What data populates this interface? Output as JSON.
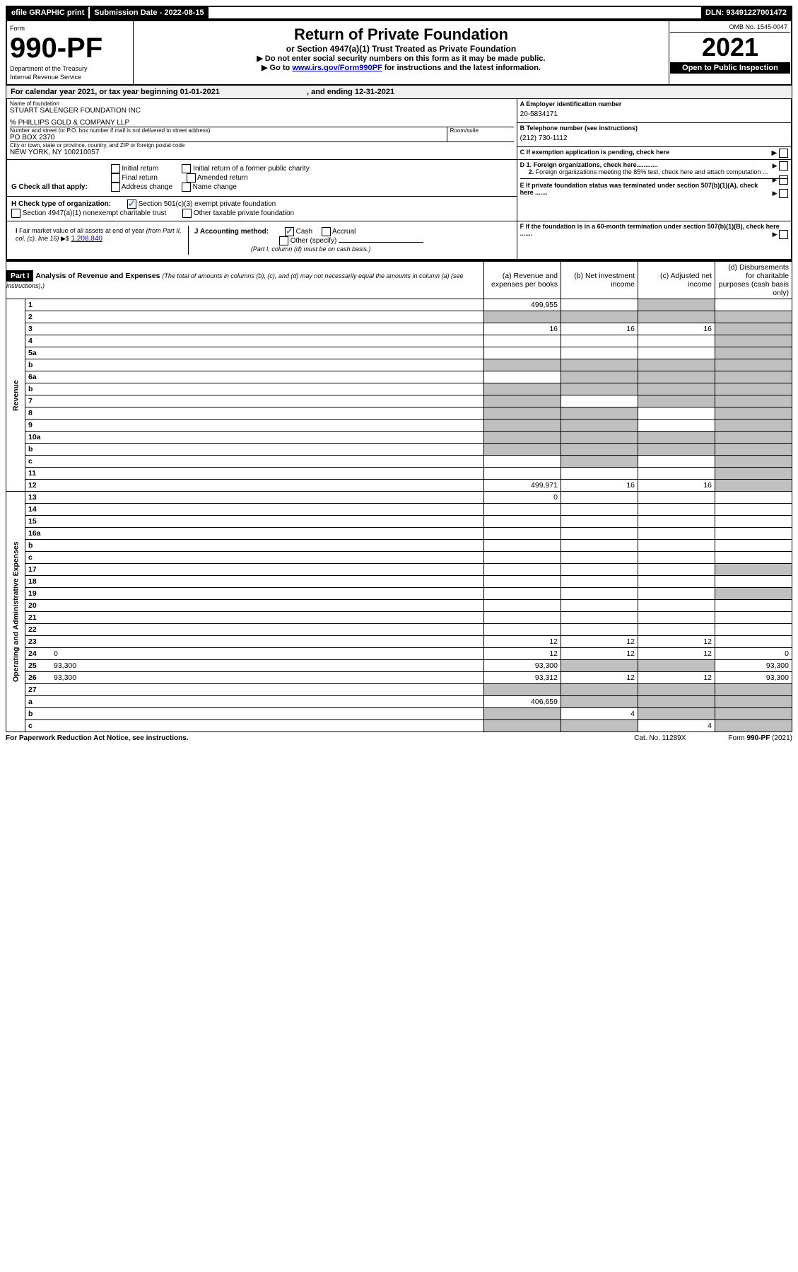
{
  "topbar": {
    "efile": "efile GRAPHIC print",
    "subdate_label": "Submission Date - ",
    "subdate": "2022-08-15",
    "dln_label": "DLN: ",
    "dln": "93491227001472"
  },
  "header": {
    "form_label": "Form",
    "form_num": "990-PF",
    "dept": "Department of the Treasury",
    "irs": "Internal Revenue Service",
    "title": "Return of Private Foundation",
    "subtitle": "or Section 4947(a)(1) Trust Treated as Private Foundation",
    "inst1": "▶ Do not enter social security numbers on this form as it may be made public.",
    "inst2_pre": "▶ Go to ",
    "inst2_link": "www.irs.gov/Form990PF",
    "inst2_post": " for instructions and the latest information.",
    "omb": "OMB No. 1545-0047",
    "year": "2021",
    "open": "Open to Public Inspection"
  },
  "calyear": {
    "pre": "For calendar year 2021, or tax year beginning ",
    "begin": "01-01-2021",
    "mid": " , and ending ",
    "end": "12-31-2021"
  },
  "info": {
    "name_label": "Name of foundation",
    "name": "STUART SALENGER FOUNDATION INC",
    "co": "% PHILLIPS GOLD & COMPANY LLP",
    "addr_label": "Number and street (or P.O. box number if mail is not delivered to street address)",
    "addr": "PO BOX 2370",
    "room_label": "Room/suite",
    "city_label": "City or town, state or province, country, and ZIP or foreign postal code",
    "city": "NEW YORK, NY  100210057",
    "A_label": "A Employer identification number",
    "A_val": "20-5834171",
    "B_label": "B Telephone number (see instructions)",
    "B_val": "(212) 730-1112",
    "C_label": "C If exemption application is pending, check here",
    "D1_label": "D 1. Foreign organizations, check here............",
    "D2_label": "2. Foreign organizations meeting the 85% test, check here and attach computation ...",
    "E_label": "E  If private foundation status was terminated under section 507(b)(1)(A), check here .......",
    "F_label": "F  If the foundation is in a 60-month termination under section 507(b)(1)(B), check here .......",
    "G_label": "G Check all that apply:",
    "G_opts": [
      "Initial return",
      "Final return",
      "Address change",
      "Initial return of a former public charity",
      "Amended return",
      "Name change"
    ],
    "H_label": "H Check type of organization:",
    "H_opt1": "Section 501(c)(3) exempt private foundation",
    "H_opt2": "Section 4947(a)(1) nonexempt charitable trust",
    "H_opt3": "Other taxable private foundation",
    "I_label": "I Fair market value of all assets at end of year (from Part II, col. (c), line 16) ▶$ ",
    "I_val": "1,208,840",
    "J_label": "J Accounting method:",
    "J_cash": "Cash",
    "J_accrual": "Accrual",
    "J_other": "Other (specify)",
    "J_note": "(Part I, column (d) must be on cash basis.)"
  },
  "part1": {
    "label": "Part I",
    "title": "Analysis of Revenue and Expenses",
    "note": " (The total of amounts in columns (b), (c), and (d) may not necessarily equal the amounts in column (a) (see instructions).)",
    "col_a": "(a)   Revenue and expenses per books",
    "col_b": "(b)   Net investment income",
    "col_c": "(c)   Adjusted net income",
    "col_d": "(d)   Disbursements for charitable purposes (cash basis only)",
    "side_revenue": "Revenue",
    "side_expenses": "Operating and Administrative Expenses"
  },
  "lines": [
    {
      "n": "1",
      "d": "",
      "a": "499,955",
      "b": "",
      "c": "",
      "sh": [
        "",
        "",
        "d"
      ]
    },
    {
      "n": "2",
      "d": "",
      "a": "",
      "b": "",
      "c": "",
      "sh": [
        "a",
        "b",
        "c",
        "d"
      ]
    },
    {
      "n": "3",
      "d": "",
      "a": "16",
      "b": "16",
      "c": "16",
      "sh": [
        "",
        "",
        "",
        "d"
      ]
    },
    {
      "n": "4",
      "d": "",
      "a": "",
      "b": "",
      "c": "",
      "sh": [
        "",
        "",
        "",
        "d"
      ]
    },
    {
      "n": "5a",
      "d": "",
      "a": "",
      "b": "",
      "c": "",
      "sh": [
        "",
        "",
        "",
        "d"
      ]
    },
    {
      "n": "b",
      "d": "",
      "a": "",
      "b": "",
      "c": "",
      "sh": [
        "a",
        "b",
        "c",
        "d"
      ]
    },
    {
      "n": "6a",
      "d": "",
      "a": "",
      "b": "",
      "c": "",
      "sh": [
        "",
        "b",
        "c",
        "d"
      ]
    },
    {
      "n": "b",
      "d": "",
      "a": "",
      "b": "",
      "c": "",
      "sh": [
        "a",
        "b",
        "c",
        "d"
      ]
    },
    {
      "n": "7",
      "d": "",
      "a": "",
      "b": "",
      "c": "",
      "sh": [
        "a",
        "",
        "c",
        "d"
      ]
    },
    {
      "n": "8",
      "d": "",
      "a": "",
      "b": "",
      "c": "",
      "sh": [
        "a",
        "b",
        "",
        "d"
      ]
    },
    {
      "n": "9",
      "d": "",
      "a": "",
      "b": "",
      "c": "",
      "sh": [
        "a",
        "b",
        "",
        "d"
      ]
    },
    {
      "n": "10a",
      "d": "",
      "a": "",
      "b": "",
      "c": "",
      "sh": [
        "a",
        "b",
        "c",
        "d"
      ]
    },
    {
      "n": "b",
      "d": "",
      "a": "",
      "b": "",
      "c": "",
      "sh": [
        "a",
        "b",
        "c",
        "d"
      ]
    },
    {
      "n": "c",
      "d": "",
      "a": "",
      "b": "",
      "c": "",
      "sh": [
        "",
        "b",
        "",
        "d"
      ]
    },
    {
      "n": "11",
      "d": "",
      "a": "",
      "b": "",
      "c": "",
      "sh": [
        "",
        "",
        "",
        "d"
      ]
    },
    {
      "n": "12",
      "d": "",
      "a": "499,971",
      "b": "16",
      "c": "16",
      "sh": [
        "",
        "",
        "",
        "d"
      ]
    },
    {
      "n": "13",
      "d": "",
      "a": "0",
      "b": "",
      "c": "",
      "sh": [
        "",
        "",
        "",
        ""
      ]
    },
    {
      "n": "14",
      "d": "",
      "a": "",
      "b": "",
      "c": "",
      "sh": [
        "",
        "",
        "",
        ""
      ]
    },
    {
      "n": "15",
      "d": "",
      "a": "",
      "b": "",
      "c": "",
      "sh": [
        "",
        "",
        "",
        ""
      ]
    },
    {
      "n": "16a",
      "d": "",
      "a": "",
      "b": "",
      "c": "",
      "sh": [
        "",
        "",
        "",
        ""
      ]
    },
    {
      "n": "b",
      "d": "",
      "a": "",
      "b": "",
      "c": "",
      "sh": [
        "",
        "",
        "",
        ""
      ]
    },
    {
      "n": "c",
      "d": "",
      "a": "",
      "b": "",
      "c": "",
      "sh": [
        "",
        "",
        "",
        ""
      ]
    },
    {
      "n": "17",
      "d": "",
      "a": "",
      "b": "",
      "c": "",
      "sh": [
        "",
        "",
        "",
        "d"
      ]
    },
    {
      "n": "18",
      "d": "",
      "a": "",
      "b": "",
      "c": "",
      "sh": [
        "",
        "",
        "",
        ""
      ]
    },
    {
      "n": "19",
      "d": "",
      "a": "",
      "b": "",
      "c": "",
      "sh": [
        "",
        "",
        "",
        "d"
      ]
    },
    {
      "n": "20",
      "d": "",
      "a": "",
      "b": "",
      "c": "",
      "sh": [
        "",
        "",
        "",
        ""
      ]
    },
    {
      "n": "21",
      "d": "",
      "a": "",
      "b": "",
      "c": "",
      "sh": [
        "",
        "",
        "",
        ""
      ]
    },
    {
      "n": "22",
      "d": "",
      "a": "",
      "b": "",
      "c": "",
      "sh": [
        "",
        "",
        "",
        ""
      ]
    },
    {
      "n": "23",
      "d": "",
      "a": "12",
      "b": "12",
      "c": "12",
      "sh": [
        "",
        "",
        "",
        ""
      ]
    },
    {
      "n": "24",
      "d": "0",
      "a": "12",
      "b": "12",
      "c": "12",
      "sh": [
        "",
        "",
        "",
        ""
      ]
    },
    {
      "n": "25",
      "d": "93,300",
      "a": "93,300",
      "b": "",
      "c": "",
      "sh": [
        "",
        "b",
        "c",
        ""
      ]
    },
    {
      "n": "26",
      "d": "93,300",
      "a": "93,312",
      "b": "12",
      "c": "12",
      "sh": [
        "",
        "",
        "",
        ""
      ]
    },
    {
      "n": "27",
      "d": "",
      "a": "",
      "b": "",
      "c": "",
      "sh": [
        "a",
        "b",
        "c",
        "d"
      ]
    },
    {
      "n": "a",
      "d": "",
      "a": "406,659",
      "b": "",
      "c": "",
      "sh": [
        "",
        "b",
        "c",
        "d"
      ]
    },
    {
      "n": "b",
      "d": "",
      "a": "",
      "b": "4",
      "c": "",
      "sh": [
        "a",
        "",
        "c",
        "d"
      ]
    },
    {
      "n": "c",
      "d": "",
      "a": "",
      "b": "",
      "c": "4",
      "sh": [
        "a",
        "b",
        "",
        "d"
      ]
    }
  ],
  "footer": {
    "left": "For Paperwork Reduction Act Notice, see instructions.",
    "mid": "Cat. No. 11289X",
    "right": "Form 990-PF (2021)"
  }
}
